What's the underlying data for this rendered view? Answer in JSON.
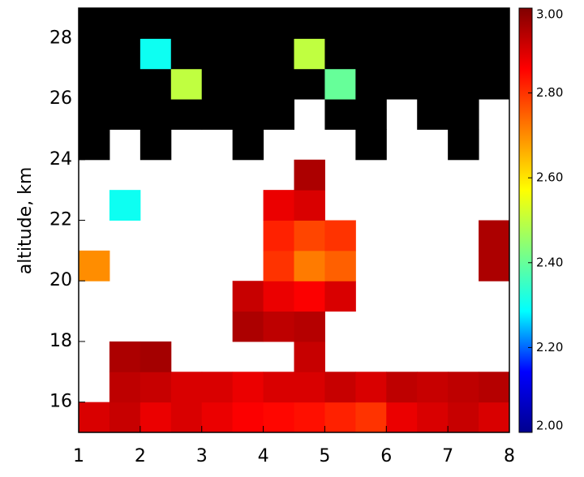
{
  "chart_data": {
    "type": "heatmap",
    "ylabel": "altitude,  km",
    "xbins": [
      1,
      1.5,
      2,
      2.5,
      3,
      3.5,
      4,
      4.5,
      5,
      5.5,
      6,
      6.5,
      7,
      7.5,
      8
    ],
    "ybins": [
      15,
      16,
      17,
      18,
      19,
      20,
      21,
      22,
      23,
      24,
      25,
      26,
      27,
      28,
      29
    ],
    "z": [
      [
        2.9,
        2.92,
        2.88,
        2.9,
        2.88,
        2.86,
        2.85,
        2.84,
        2.82,
        2.8,
        2.88,
        2.9,
        2.92,
        2.9
      ],
      [
        null,
        2.93,
        2.92,
        2.9,
        2.9,
        2.88,
        2.9,
        2.9,
        2.92,
        2.9,
        2.93,
        2.92,
        2.93,
        2.94
      ],
      [
        null,
        2.95,
        2.96,
        null,
        null,
        null,
        null,
        2.92,
        null,
        null,
        null,
        null,
        null,
        null
      ],
      [
        null,
        null,
        null,
        null,
        null,
        2.95,
        2.93,
        2.94,
        null,
        null,
        null,
        null,
        null,
        null
      ],
      [
        null,
        null,
        null,
        null,
        null,
        2.92,
        2.88,
        2.86,
        2.9,
        null,
        null,
        null,
        null,
        null
      ],
      [
        2.7,
        null,
        null,
        null,
        null,
        null,
        2.8,
        2.72,
        2.75,
        null,
        null,
        null,
        null,
        2.95
      ],
      [
        null,
        null,
        null,
        null,
        null,
        null,
        2.82,
        2.78,
        2.8,
        null,
        null,
        null,
        null,
        2.95
      ],
      [
        null,
        2.3,
        null,
        null,
        null,
        null,
        2.88,
        2.9,
        null,
        null,
        null,
        null,
        null,
        null
      ],
      [
        null,
        null,
        null,
        null,
        null,
        null,
        null,
        2.95,
        null,
        null,
        null,
        null,
        null,
        null
      ],
      [
        1.9,
        null,
        1.9,
        null,
        null,
        1.9,
        null,
        null,
        null,
        1.9,
        null,
        null,
        1.9,
        null
      ],
      [
        1.9,
        1.9,
        1.9,
        1.9,
        1.9,
        1.9,
        1.9,
        null,
        1.9,
        1.9,
        null,
        1.9,
        1.9,
        null
      ],
      [
        1.9,
        1.9,
        1.9,
        2.5,
        1.9,
        1.9,
        1.9,
        1.9,
        2.4,
        1.9,
        1.9,
        1.9,
        1.9,
        1.9
      ],
      [
        1.9,
        1.9,
        2.3,
        1.9,
        1.9,
        1.9,
        1.9,
        2.5,
        1.9,
        1.9,
        1.9,
        1.9,
        1.9,
        1.9
      ],
      [
        1.9,
        1.9,
        1.9,
        1.9,
        1.9,
        1.9,
        1.9,
        1.9,
        1.9,
        1.9,
        1.9,
        1.9,
        1.9,
        1.9
      ]
    ],
    "xlim": [
      1,
      8
    ],
    "xticks": [
      1,
      2,
      3,
      4,
      5,
      6,
      7,
      8
    ],
    "ylim": [
      15,
      29
    ],
    "yticks": [
      16,
      18,
      20,
      22,
      24,
      26,
      28
    ],
    "clim": [
      2,
      3
    ],
    "cticks": [
      {
        "value": 2,
        "label": "2.00"
      },
      {
        "value": 2.2,
        "label": "2.20"
      },
      {
        "value": 2.4,
        "label": "2.40"
      },
      {
        "value": 2.6,
        "label": "2.60"
      },
      {
        "value": 2.8,
        "label": "2.80"
      },
      {
        "value": 3,
        "label": "3.00"
      }
    ],
    "colormap": [
      "#00008f",
      "#0000ff",
      "#00ffff",
      "#80ff80",
      "#ffff00",
      "#ff8000",
      "#ff0000",
      "#800000"
    ],
    "under_color": "#000000"
  }
}
